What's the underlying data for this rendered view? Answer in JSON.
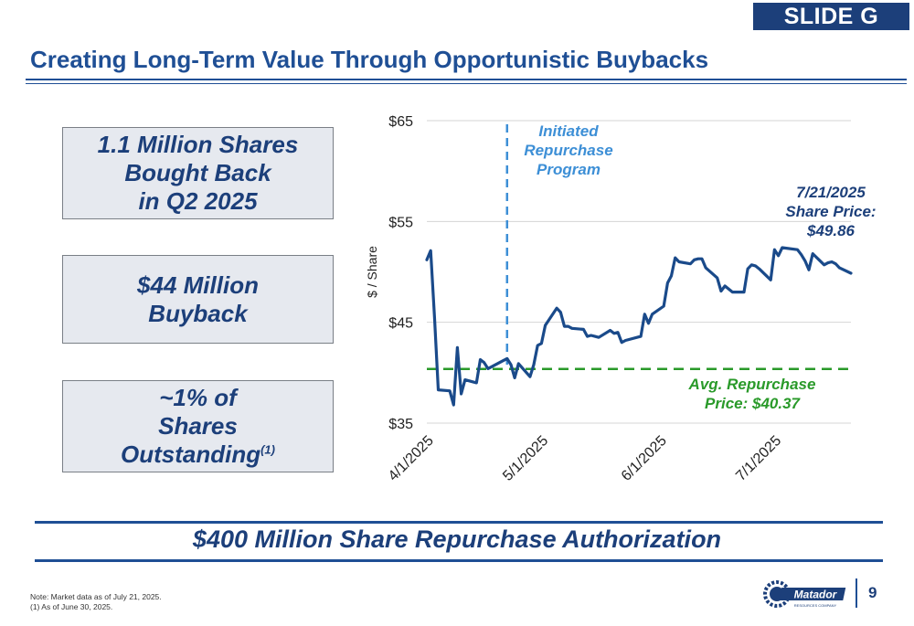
{
  "slide_tag": "SLIDE G",
  "title": "Creating Long-Term Value Through Opportunistic Buybacks",
  "callouts": [
    {
      "lines": [
        "1.1 Million Shares",
        "Bought Back",
        "in Q2 2025"
      ]
    },
    {
      "lines": [
        "$44 Million",
        "Buyback"
      ]
    },
    {
      "lines": [
        "~1% of",
        "Shares",
        "Outstanding"
      ],
      "superscript": "(1)"
    }
  ],
  "authorization": "$400 Million Share Repurchase Authorization",
  "notes": [
    "Note: Market data as of July 21, 2025.",
    "(1)  As of June 30, 2025."
  ],
  "page_number": "9",
  "logo": {
    "name": "Matador",
    "tagline": "RESOURCES COMPANY"
  },
  "colors": {
    "brand": "#1c3f7a",
    "line": "#1a4a8a",
    "event": "#3d8fd6",
    "average": "#2a9a2a"
  },
  "chart_data": {
    "type": "line",
    "ylabel": "$ / Share",
    "ylim": [
      35,
      65
    ],
    "yticks": [
      35,
      45,
      55,
      65
    ],
    "ytick_labels": [
      "$35",
      "$45",
      "$55",
      "$65"
    ],
    "xlim": [
      "2025-04-01",
      "2025-07-21"
    ],
    "xticks": [
      "2025-04-01",
      "2025-05-01",
      "2025-06-01",
      "2025-07-01"
    ],
    "xtick_labels": [
      "4/1/2025",
      "5/1/2025",
      "6/1/2025",
      "7/1/2025"
    ],
    "grid": "horizontal",
    "series": [
      {
        "x": [
          "2025-04-01",
          "2025-04-02",
          "2025-04-03",
          "2025-04-04",
          "2025-04-07",
          "2025-04-08",
          "2025-04-09",
          "2025-04-10",
          "2025-04-11",
          "2025-04-14",
          "2025-04-15",
          "2025-04-16",
          "2025-04-17",
          "2025-04-21",
          "2025-04-22",
          "2025-04-23",
          "2025-04-24",
          "2025-04-25",
          "2025-04-28",
          "2025-04-29",
          "2025-04-30",
          "2025-05-01",
          "2025-05-02",
          "2025-05-05",
          "2025-05-06",
          "2025-05-07",
          "2025-05-08",
          "2025-05-09",
          "2025-05-12",
          "2025-05-13",
          "2025-05-14",
          "2025-05-15",
          "2025-05-16",
          "2025-05-19",
          "2025-05-20",
          "2025-05-21",
          "2025-05-22",
          "2025-05-23",
          "2025-05-27",
          "2025-05-28",
          "2025-05-29",
          "2025-05-30",
          "2025-06-02",
          "2025-06-03",
          "2025-06-04",
          "2025-06-05",
          "2025-06-06",
          "2025-06-09",
          "2025-06-10",
          "2025-06-11",
          "2025-06-12",
          "2025-06-13",
          "2025-06-16",
          "2025-06-17",
          "2025-06-18",
          "2025-06-20",
          "2025-06-23",
          "2025-06-24",
          "2025-06-25",
          "2025-06-26",
          "2025-06-27",
          "2025-06-30",
          "2025-07-01",
          "2025-07-02",
          "2025-07-03",
          "2025-07-07",
          "2025-07-08",
          "2025-07-09",
          "2025-07-10",
          "2025-07-11",
          "2025-07-14",
          "2025-07-15",
          "2025-07-16",
          "2025-07-17",
          "2025-07-18",
          "2025-07-21"
        ],
        "values": [
          51.2,
          52.1,
          45.5,
          38.3,
          38.2,
          36.8,
          42.5,
          37.9,
          39.3,
          39.0,
          41.3,
          41.0,
          40.4,
          41.2,
          41.4,
          40.8,
          39.5,
          40.9,
          39.6,
          40.8,
          42.7,
          42.9,
          44.7,
          46.4,
          46.0,
          44.6,
          44.6,
          44.4,
          44.3,
          43.6,
          43.7,
          43.6,
          43.5,
          44.2,
          43.9,
          44.0,
          43.0,
          43.2,
          43.6,
          45.8,
          44.9,
          45.8,
          46.6,
          48.9,
          49.6,
          51.4,
          51.0,
          50.8,
          51.2,
          51.3,
          51.3,
          50.4,
          49.4,
          48.1,
          48.6,
          48.0,
          48.0,
          50.3,
          50.7,
          50.6,
          50.3,
          49.2,
          52.2,
          51.6,
          52.4,
          52.2,
          51.7,
          51.1,
          50.2,
          51.8,
          50.7,
          50.9,
          51.0,
          50.8,
          50.4,
          49.86
        ]
      }
    ],
    "reference_lines": [
      {
        "type": "vertical",
        "x": "2025-04-22",
        "style": "dashed",
        "label": [
          "Initiated",
          "Repurchase",
          "Program"
        ]
      },
      {
        "type": "horizontal",
        "y": 40.37,
        "style": "dashed",
        "label": [
          "Avg. Repurchase",
          "Price: $40.37"
        ]
      }
    ],
    "annotations": [
      {
        "x": "2025-07-21",
        "y": 49.86,
        "text": [
          "7/21/2025",
          "Share Price:",
          "$49.86"
        ]
      }
    ]
  }
}
